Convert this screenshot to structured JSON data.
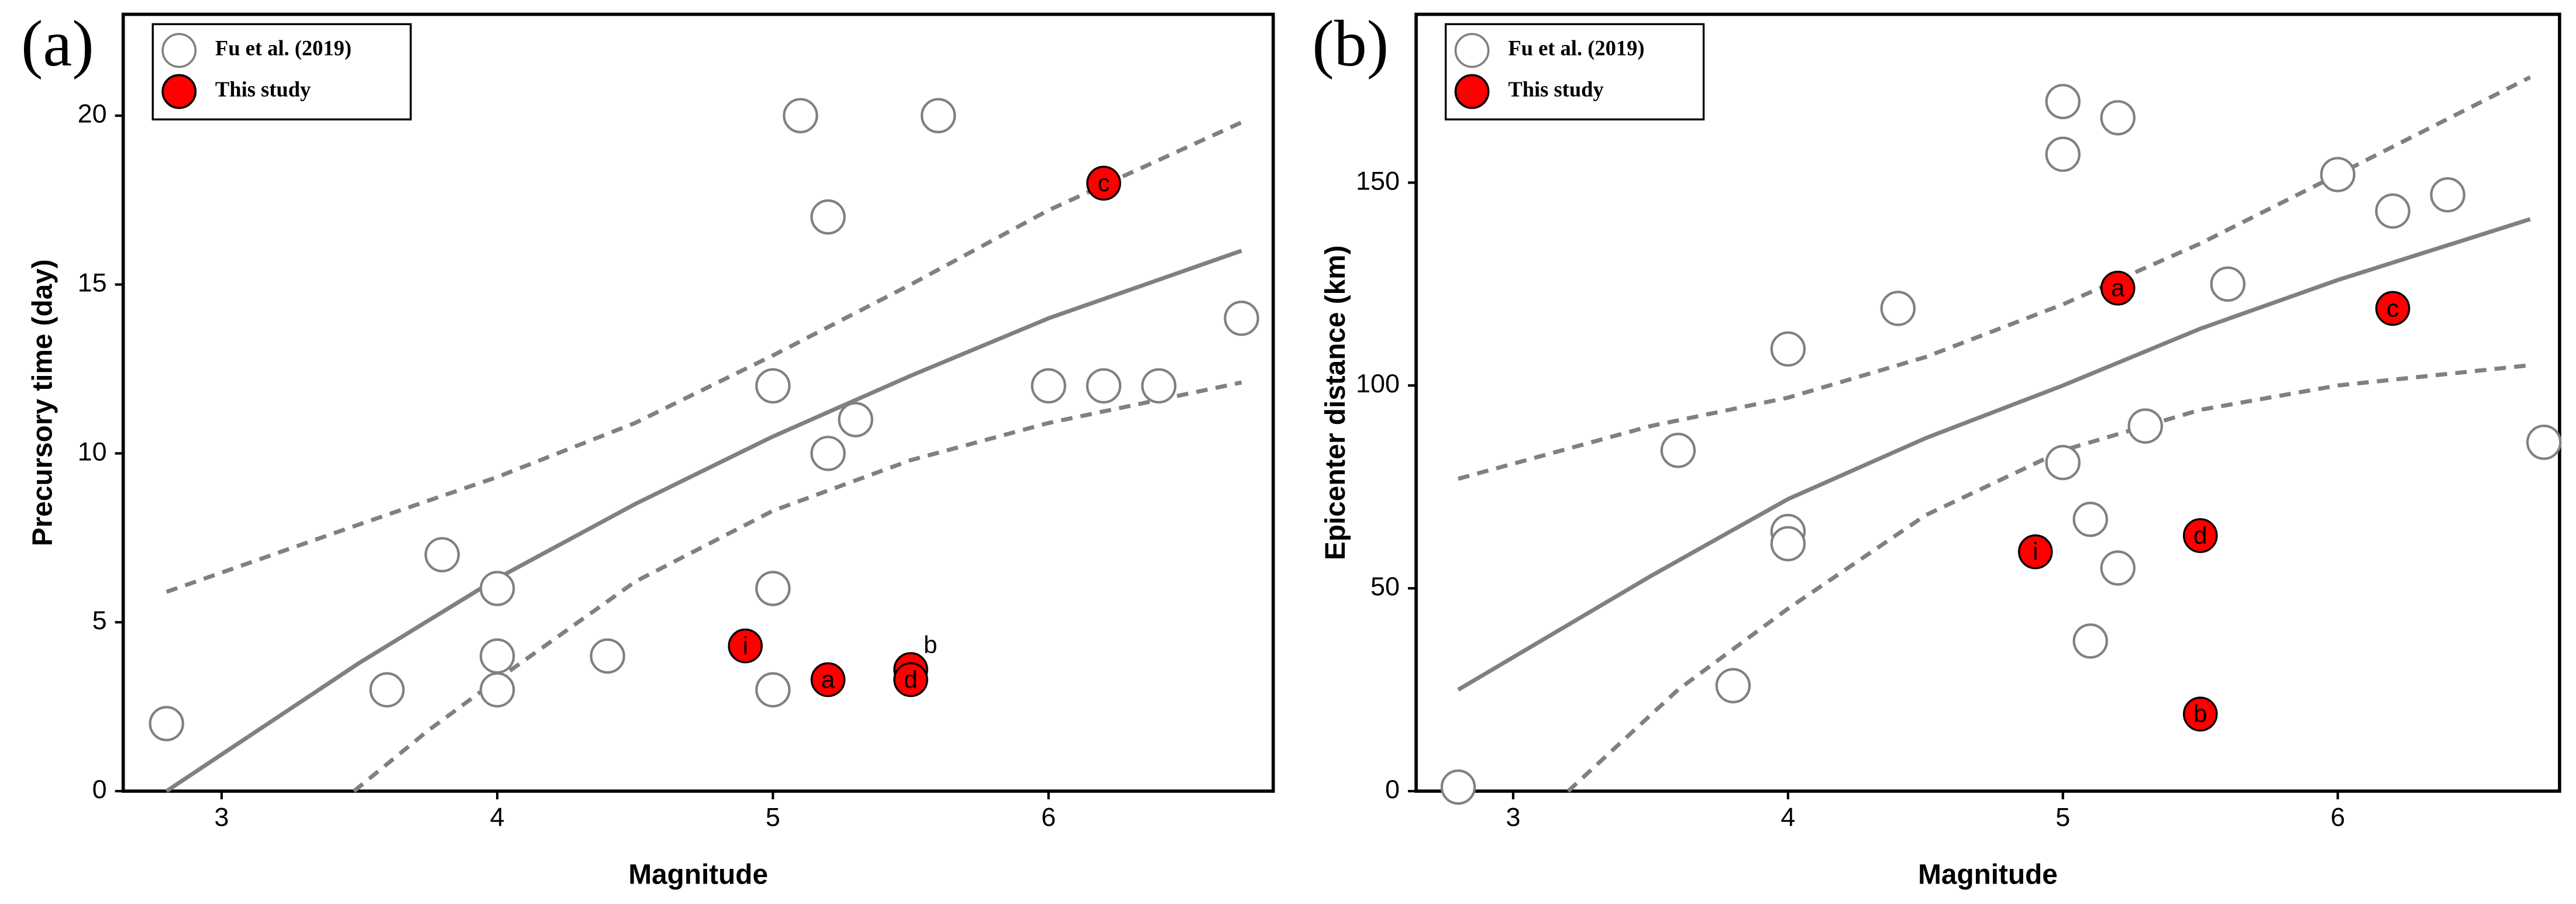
{
  "chart_data": [
    {
      "type": "scatter",
      "panel": "(a)",
      "x_label": "Magnitude",
      "y_label": "Precursory time (day)",
      "xlim": [
        2.643,
        6.815
      ],
      "ylim": [
        0,
        23
      ],
      "xticks": [
        3,
        4,
        5,
        6
      ],
      "yticks": [
        0,
        5,
        10,
        15,
        20
      ],
      "series": [
        {
          "name": "Fu et al. (2019)",
          "color": "#808080",
          "x": [
            2.8,
            3.6,
            3.8,
            4,
            4,
            4,
            4.4,
            5,
            5,
            5,
            5.1,
            5.2,
            5.2,
            5.3,
            5.6,
            6,
            6.2,
            6.4,
            6.7
          ],
          "values": [
            2,
            3,
            7,
            6,
            4,
            3,
            4,
            12,
            6,
            3,
            20,
            17,
            10,
            11,
            20,
            12,
            12,
            12,
            14
          ]
        },
        {
          "name": "This study",
          "color": "#ff0000",
          "x": [
            4.9,
            5.2,
            5.5,
            5.5,
            6.2
          ],
          "values": [
            4.3,
            3.3,
            3.6,
            3.3,
            18
          ],
          "labels": [
            "i",
            "a",
            "b",
            "d",
            "c"
          ]
        }
      ],
      "fit": {
        "color": "#808080",
        "x": [
          2.8,
          3.5,
          4,
          4.5,
          5,
          5.5,
          6,
          6.7
        ],
        "values": [
          0,
          3.8,
          6.3,
          8.5,
          10.5,
          12.3,
          14,
          16
        ]
      },
      "upper": {
        "color": "#808080",
        "x": [
          2.8,
          3.5,
          4,
          4.5,
          5,
          5.5,
          6,
          6.7
        ],
        "values": [
          5.9,
          7.9,
          9.3,
          10.9,
          12.9,
          15,
          17.2,
          19.8
        ]
      },
      "lower": {
        "color": "#808080",
        "x": [
          3.48,
          3.75,
          4,
          4.5,
          5,
          5.5,
          6,
          6.7
        ],
        "values": [
          0,
          1.8,
          3.3,
          6.2,
          8.3,
          9.8,
          10.9,
          12.1
        ]
      }
    },
    {
      "type": "scatter",
      "panel": "(b)",
      "x_label": "Magnitude",
      "y_label": "Epicenter distance (km)",
      "xlim": [
        2.647,
        6.807
      ],
      "ylim": [
        0,
        191.5
      ],
      "xticks": [
        3,
        4,
        5,
        6
      ],
      "yticks": [
        0,
        50,
        100,
        150
      ],
      "series": [
        {
          "name": "Fu et al. (2019)",
          "color": "#808080",
          "x": [
            2.8,
            3.6,
            3.8,
            4,
            4,
            4,
            4.4,
            5,
            5,
            5,
            5.1,
            5.1,
            5.2,
            5.2,
            5.3,
            5.6,
            6,
            6.2,
            6.4,
            6.75
          ],
          "values": [
            1,
            84,
            26,
            109,
            64,
            61,
            119,
            170,
            157,
            81,
            67,
            37,
            166,
            55,
            90,
            125,
            152,
            143,
            147,
            86
          ]
        },
        {
          "name": "This study",
          "color": "#ff0000",
          "x": [
            5.2,
            6.2,
            4.9,
            5.5,
            5.5
          ],
          "values": [
            124,
            119,
            59,
            63,
            19
          ],
          "labels": [
            "a",
            "c",
            "i",
            "d",
            "b"
          ]
        }
      ],
      "fit": {
        "color": "#808080",
        "x": [
          2.8,
          3.5,
          4,
          4.5,
          5,
          5.5,
          6,
          6.7
        ],
        "values": [
          25,
          53,
          72,
          87,
          100,
          114,
          126,
          141
        ]
      },
      "upper": {
        "color": "#808080",
        "x": [
          2.8,
          3.5,
          4,
          4.5,
          5,
          5.5,
          6,
          6.7
        ],
        "values": [
          77,
          90,
          97,
          107,
          120,
          135,
          152,
          176
        ]
      },
      "lower": {
        "color": "#808080",
        "x": [
          3.2,
          3.6,
          4,
          4.5,
          5,
          5.5,
          6,
          6.7
        ],
        "values": [
          0,
          25,
          45,
          68,
          84,
          94,
          100,
          105
        ]
      }
    }
  ]
}
